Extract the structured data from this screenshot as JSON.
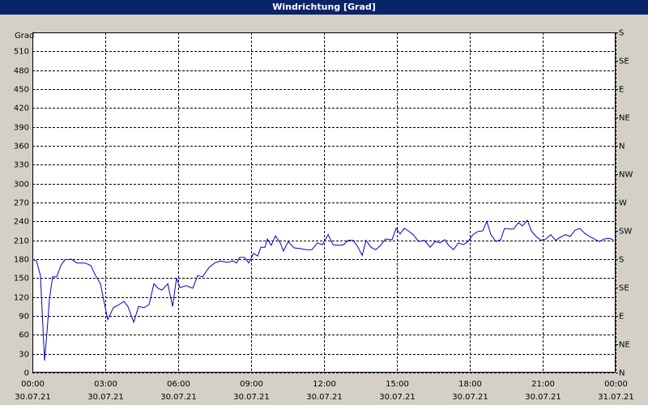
{
  "chart_data": {
    "type": "line",
    "title": "Windrichtung [Grad]",
    "ylabel": "Grad",
    "color": "#0000cc",
    "grid": true,
    "xlim": [
      0,
      24
    ],
    "ylim": [
      0,
      540
    ],
    "y2lim": [
      0,
      540
    ],
    "xticks": [
      {
        "value": 0,
        "label": "00:00"
      },
      {
        "value": 3,
        "label": "03:00"
      },
      {
        "value": 6,
        "label": "06:00"
      },
      {
        "value": 9,
        "label": "09:00"
      },
      {
        "value": 12,
        "label": "12:00"
      },
      {
        "value": 15,
        "label": "15:00"
      },
      {
        "value": 18,
        "label": "18:00"
      },
      {
        "value": 21,
        "label": "21:00"
      },
      {
        "value": 24,
        "label": "00:00"
      }
    ],
    "xtick_dates": [
      "30.07.21",
      "30.07.21",
      "30.07.21",
      "30.07.21",
      "30.07.21",
      "30.07.21",
      "30.07.21",
      "30.07.21",
      "31.07.21"
    ],
    "yticks": [
      0,
      30,
      60,
      90,
      120,
      150,
      180,
      210,
      240,
      270,
      300,
      330,
      360,
      390,
      420,
      450,
      480,
      510
    ],
    "y2ticks": [
      {
        "value": 0,
        "label": "N"
      },
      {
        "value": 45,
        "label": "NE"
      },
      {
        "value": 90,
        "label": "E"
      },
      {
        "value": 135,
        "label": "SE"
      },
      {
        "value": 180,
        "label": "S"
      },
      {
        "value": 225,
        "label": "SW"
      },
      {
        "value": 270,
        "label": "W"
      },
      {
        "value": 315,
        "label": "NW"
      },
      {
        "value": 360,
        "label": "N"
      },
      {
        "value": 405,
        "label": "NE"
      },
      {
        "value": 450,
        "label": "E"
      },
      {
        "value": 495,
        "label": "SE"
      },
      {
        "value": 540,
        "label": "S"
      }
    ],
    "x": [
      0,
      0.17,
      0.33,
      0.5,
      0.6,
      0.7,
      0.83,
      1.0,
      1.17,
      1.33,
      1.6,
      1.83,
      2.17,
      2.4,
      2.6,
      2.8,
      2.93,
      3.1,
      3.33,
      3.57,
      3.77,
      3.93,
      4.17,
      4.37,
      4.6,
      4.8,
      5.0,
      5.17,
      5.33,
      5.57,
      5.77,
      5.93,
      6.07,
      6.33,
      6.6,
      6.8,
      7.0,
      7.27,
      7.5,
      7.73,
      8.0,
      8.27,
      8.4,
      8.53,
      8.73,
      8.9,
      9.1,
      9.27,
      9.4,
      9.57,
      9.67,
      9.83,
      10.0,
      10.2,
      10.33,
      10.53,
      10.77,
      11.0,
      11.27,
      11.5,
      11.73,
      11.93,
      12.17,
      12.37,
      12.6,
      12.8,
      13.0,
      13.2,
      13.4,
      13.57,
      13.73,
      13.93,
      14.13,
      14.33,
      14.53,
      14.8,
      14.97,
      15.13,
      15.3,
      15.47,
      15.67,
      15.9,
      16.13,
      16.37,
      16.57,
      16.77,
      16.97,
      17.13,
      17.33,
      17.53,
      17.73,
      17.93,
      18.13,
      18.33,
      18.53,
      18.7,
      18.87,
      19.07,
      19.27,
      19.43,
      19.63,
      19.8,
      20.0,
      20.17,
      20.37,
      20.53,
      20.73,
      20.93,
      21.13,
      21.33,
      21.53,
      21.73,
      21.93,
      22.13,
      22.33,
      22.53,
      22.73,
      22.93,
      23.13,
      23.33,
      23.53,
      23.73,
      23.9
    ],
    "values": [
      180,
      177,
      154,
      19,
      64,
      116,
      152,
      152,
      170,
      179,
      180,
      174,
      174,
      170,
      154,
      141,
      116,
      84,
      103,
      108,
      113,
      105,
      80,
      105,
      103,
      108,
      141,
      134,
      131,
      141,
      105,
      150,
      135,
      138,
      134,
      154,
      152,
      167,
      174,
      177,
      175,
      177,
      174,
      183,
      183,
      174,
      189,
      185,
      199,
      199,
      212,
      202,
      217,
      206,
      193,
      208,
      198,
      197,
      195,
      195,
      206,
      203,
      219,
      203,
      202,
      203,
      210,
      210,
      199,
      186,
      210,
      199,
      195,
      202,
      212,
      211,
      229,
      220,
      229,
      225,
      219,
      208,
      210,
      199,
      208,
      206,
      211,
      202,
      195,
      206,
      203,
      208,
      219,
      224,
      225,
      240,
      219,
      208,
      211,
      229,
      228,
      228,
      238,
      233,
      242,
      225,
      216,
      210,
      212,
      219,
      210,
      215,
      219,
      216,
      226,
      229,
      221,
      216,
      212,
      208,
      212,
      213,
      211
    ]
  }
}
